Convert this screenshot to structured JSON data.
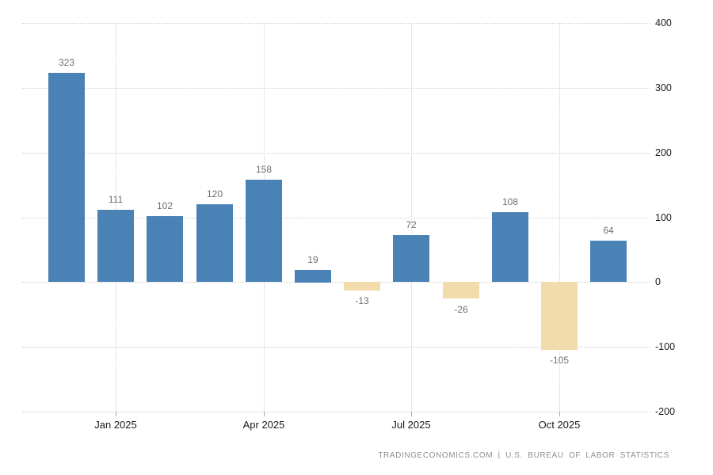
{
  "chart_data": {
    "type": "bar",
    "values": [
      323,
      111,
      102,
      120,
      158,
      19,
      -13,
      72,
      -26,
      108,
      -105,
      64
    ],
    "x_tick_labels": [
      "Jan 2025",
      "Apr 2025",
      "Jul 2025",
      "Oct 2025"
    ],
    "x_tick_bar_indices": [
      1,
      4,
      7,
      10
    ],
    "y_ticks": [
      400,
      300,
      200,
      100,
      0,
      -100,
      -200
    ],
    "ylim": [
      -200,
      400
    ],
    "grid": "dotted",
    "legend": "none",
    "title": "",
    "colors": {
      "positive_bar": "#4a82b6",
      "negative_bar": "#f2dcab",
      "gridline": "#cfcfcf",
      "value_label": "#6f6f6f",
      "axis_label": "#1a1a1a"
    },
    "footer": "TRADINGECONOMICS.COM | U.S. BUREAU OF LABOR STATISTICS"
  }
}
